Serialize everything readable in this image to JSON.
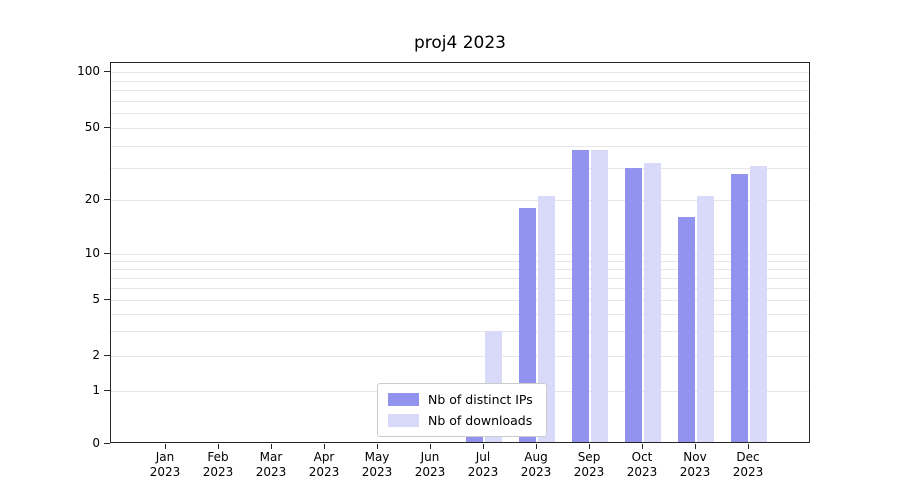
{
  "title": "proj4 2023",
  "chart_data": {
    "type": "bar",
    "title": "proj4 2023",
    "xlabel": "",
    "ylabel": "",
    "yscale": "symlog",
    "ylim": [
      0,
      115
    ],
    "grid": true,
    "legend_position": "lower center",
    "categories": [
      "Jan 2023",
      "Feb 2023",
      "Mar 2023",
      "Apr 2023",
      "May 2023",
      "Jun 2023",
      "Jul 2023",
      "Aug 2023",
      "Sep 2023",
      "Oct 2023",
      "Nov 2023",
      "Dec 2023"
    ],
    "yticks": [
      0,
      1,
      2,
      5,
      10,
      20,
      50,
      100
    ],
    "gridlines": [
      1,
      2,
      3,
      4,
      5,
      6,
      7,
      8,
      9,
      10,
      20,
      30,
      40,
      50,
      60,
      70,
      80,
      90,
      100
    ],
    "series": [
      {
        "name": "Nb of distinct IPs",
        "color": "#9193ee",
        "values": [
          0,
          0,
          0,
          0,
          0,
          0,
          1,
          18,
          38,
          30,
          16,
          28
        ]
      },
      {
        "name": "Nb of downloads",
        "color": "#d9daf9",
        "values": [
          0,
          0,
          0,
          0,
          0,
          0,
          3,
          21,
          38,
          32,
          21,
          31
        ]
      }
    ]
  }
}
